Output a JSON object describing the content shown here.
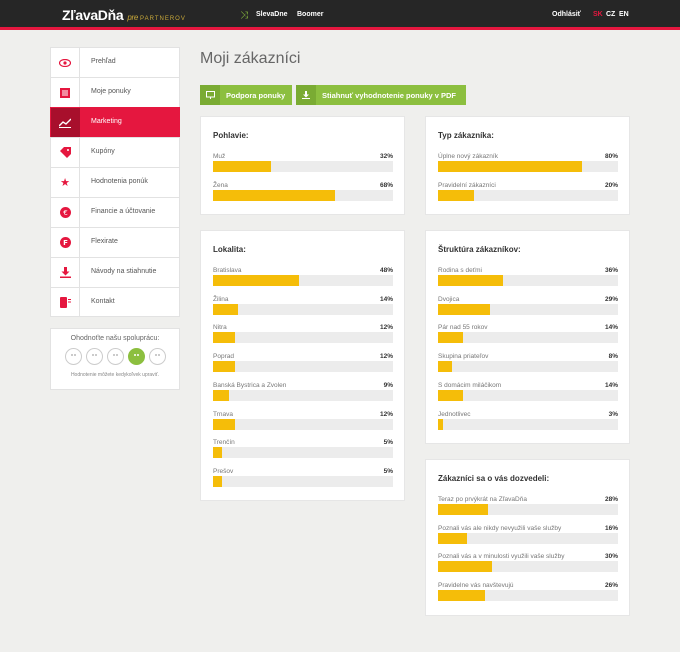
{
  "header": {
    "logo": "ZľavaDňa",
    "logo_pre": "pre",
    "logo_partner": "PARTNEROV",
    "links": [
      "SlevaDne",
      "Boomer"
    ],
    "logout": "Odhlásiť",
    "languages": [
      {
        "code": "SK",
        "active": true
      },
      {
        "code": "CZ",
        "active": false
      },
      {
        "code": "EN",
        "active": false
      }
    ]
  },
  "sidebar": {
    "items": [
      {
        "label": "Prehľad",
        "icon": "eye-icon"
      },
      {
        "label": "Moje ponuky",
        "icon": "list-icon"
      },
      {
        "label": "Marketing",
        "icon": "chart-icon"
      },
      {
        "label": "Kupóny",
        "icon": "tag-icon"
      },
      {
        "label": "Hodnotenia ponúk",
        "icon": "star-icon"
      },
      {
        "label": "Financie a účtovanie",
        "icon": "euro-icon"
      },
      {
        "label": "Flexirate",
        "icon": "flexirate-icon"
      },
      {
        "label": "Návody na stiahnutie",
        "icon": "download-icon"
      },
      {
        "label": "Kontakt",
        "icon": "phone-icon"
      }
    ],
    "active_index": 2
  },
  "rating": {
    "title": "Ohodnoťte našu spoluprácu:",
    "selected": 4,
    "note": "Hodnotenie môžete kedykoľvek upraviť."
  },
  "main": {
    "title": "Moji zákazníci",
    "buttons": [
      {
        "label": "Podpora ponuky",
        "icon": "presentation-icon"
      },
      {
        "label": "Stiahnuť vyhodnotenie ponuky v PDF",
        "icon": "download-icon"
      }
    ]
  },
  "chart_data": [
    {
      "type": "bar",
      "title": "Pohlavie:",
      "categories": [
        "Muž",
        "Žena"
      ],
      "values": [
        32,
        68
      ],
      "labels": [
        "32%",
        "68%"
      ]
    },
    {
      "type": "bar",
      "title": "Typ zákazníka:",
      "categories": [
        "Úplne nový zákazník",
        "Pravidelní zákazníci"
      ],
      "values": [
        80,
        20
      ],
      "labels": [
        "80%",
        "20%"
      ]
    },
    {
      "type": "bar",
      "title": "Lokalita:",
      "categories": [
        "Bratislava",
        "Žilina",
        "Nitra",
        "Poprad",
        "Banská Bystrica a Zvolen",
        "Trnava",
        "Trenčín",
        "Prešov"
      ],
      "values": [
        48,
        14,
        12,
        12,
        9,
        12,
        5,
        5
      ],
      "labels": [
        "48%",
        "14%",
        "12%",
        "12%",
        "9%",
        "12%",
        "5%",
        "5%"
      ]
    },
    {
      "type": "bar",
      "title": "Štruktúra zákazníkov:",
      "categories": [
        "Rodina s deťmi",
        "Dvojica",
        "Pár nad 55 rokov",
        "Skupina priateľov",
        "S domácim miláčikom",
        "Jednotlivec"
      ],
      "values": [
        36,
        29,
        14,
        8,
        14,
        3
      ],
      "labels": [
        "36%",
        "29%",
        "14%",
        "8%",
        "14%",
        "3%"
      ]
    },
    {
      "type": "bar",
      "title": "Zákazníci sa o vás dozvedeli:",
      "categories": [
        "Teraz po prvýkrát na ZľavaDňa",
        "Poznali vás ale nikdy nevyužili vaše služby",
        "Poznali vás a v minulosti využili vaše služby",
        "Pravidelne vás navštevujú"
      ],
      "values": [
        28,
        16,
        30,
        26
      ],
      "labels": [
        "28%",
        "16%",
        "30%",
        "26%"
      ]
    }
  ]
}
